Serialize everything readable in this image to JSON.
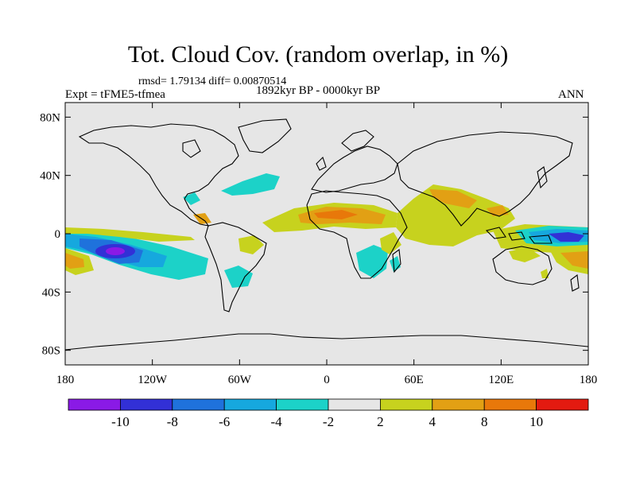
{
  "title": "Tot. Cloud Cov. (random overlap, in %)",
  "stats_text": "rmsd= 1.79134 diff= 0.00870514",
  "experiment_label": "Expt = tFME5-tfmea",
  "period_label": "1892kyr BP - 0000kyr BP",
  "season_label": "ANN",
  "colors": {
    "land_bg": "#e6e6e6",
    "coast": "#000000"
  },
  "chart_data": {
    "type": "heatmap",
    "title": "Tot. Cloud Cov. (random overlap, in %)",
    "projection": "cylindrical-equidistant",
    "lon_range": [
      -180,
      180
    ],
    "lat_range": [
      -90,
      90
    ],
    "x_ticks": [
      {
        "value": -180,
        "label": "180"
      },
      {
        "value": -120,
        "label": "120W"
      },
      {
        "value": -60,
        "label": "60W"
      },
      {
        "value": 0,
        "label": "0"
      },
      {
        "value": 60,
        "label": "60E"
      },
      {
        "value": 120,
        "label": "120E"
      },
      {
        "value": 180,
        "label": "180"
      }
    ],
    "y_ticks": [
      {
        "value": 80,
        "label": "80N"
      },
      {
        "value": 40,
        "label": "40N"
      },
      {
        "value": 0,
        "label": "0"
      },
      {
        "value": -40,
        "label": "40S"
      },
      {
        "value": -80,
        "label": "80S"
      }
    ],
    "colorbar": {
      "levels": [
        -12,
        -10,
        -8,
        -6,
        -4,
        -2,
        2,
        4,
        8,
        10,
        12
      ],
      "labels": [
        "-10",
        "-8",
        "-6",
        "-4",
        "-2",
        "2",
        "4",
        "8",
        "10"
      ],
      "colors": [
        "#8a1ae6",
        "#3230d6",
        "#1f72dc",
        "#16a8de",
        "#1cd2c8",
        "#e6e6e6",
        "#c7d21e",
        "#e2a014",
        "#e8780a",
        "#e31a10"
      ]
    },
    "anomalies": [
      {
        "region": "central Pacific south of equator",
        "lon": [
          -180,
          -110
        ],
        "lat": [
          -30,
          2
        ],
        "value": -10
      },
      {
        "region": "western equatorial Pacific",
        "lon": [
          135,
          180
        ],
        "lat": [
          -12,
          2
        ],
        "value": -8
      },
      {
        "region": "subtropical North Atlantic",
        "lon": [
          -70,
          -30
        ],
        "lat": [
          22,
          35
        ],
        "value": -4
      },
      {
        "region": "southern Africa",
        "lon": [
          15,
          35
        ],
        "lat": [
          -30,
          -15
        ],
        "value": -4
      },
      {
        "region": "southern South America",
        "lon": [
          -65,
          -50
        ],
        "lat": [
          -40,
          -28
        ],
        "value": -4
      },
      {
        "region": "Sahel and equatorial Atlantic",
        "lon": [
          -30,
          40
        ],
        "lat": [
          5,
          20
        ],
        "value": 6
      },
      {
        "region": "Arabia, Indian Ocean and South Asia",
        "lon": [
          30,
          110
        ],
        "lat": [
          -12,
          30
        ],
        "value": 3
      },
      {
        "region": "Pacific south of 20S",
        "lon": [
          -180,
          -160
        ],
        "lat": [
          -30,
          -15
        ],
        "value": 6
      },
      {
        "region": "tropical Australia",
        "lon": [
          115,
          150
        ],
        "lat": [
          -20,
          -10
        ],
        "value": 3
      },
      {
        "region": "southwest Pacific",
        "lon": [
          150,
          180
        ],
        "lat": [
          -30,
          -15
        ],
        "value": 6
      }
    ]
  }
}
